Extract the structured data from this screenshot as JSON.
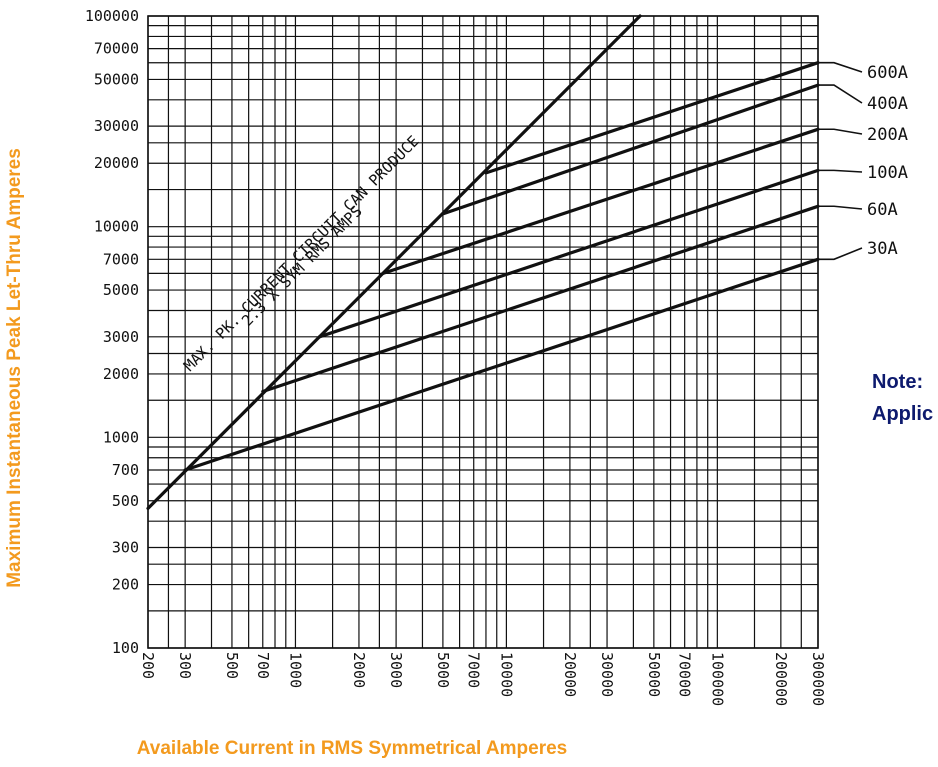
{
  "chart_data": {
    "type": "line",
    "xlabel": "Available Current in RMS Symmetrical Amperes",
    "ylabel": "Maximum Instantaneous Peak Let-Thru Amperes",
    "xscale": "log",
    "yscale": "log",
    "xlim": [
      200,
      300000
    ],
    "ylim": [
      100,
      100000
    ],
    "x_ticks": [
      "200",
      "300",
      "500",
      "700",
      "1000",
      "2000",
      "3000",
      "5000",
      "7000",
      "10000",
      "20000",
      "30000",
      "50000",
      "70000",
      "100000",
      "200000",
      "300000"
    ],
    "y_ticks": [
      "100",
      "200",
      "300",
      "500",
      "700",
      "1000",
      "2000",
      "3000",
      "5000",
      "7000",
      "10000",
      "20000",
      "30000",
      "50000",
      "70000",
      "100000"
    ],
    "max_line": {
      "label_line1": "MAX. PK. CURRENT CIRCUIT CAN PRODUCE",
      "label_line2": "2.3 X SYM RMS AMPS",
      "x": [
        200,
        43000
      ],
      "y": [
        460,
        100000
      ]
    },
    "series": [
      {
        "name": "600A",
        "x": [
          8000,
          300000
        ],
        "y": [
          18000,
          60000
        ]
      },
      {
        "name": "400A",
        "x": [
          5000,
          300000
        ],
        "y": [
          11500,
          47000
        ]
      },
      {
        "name": "200A",
        "x": [
          2600,
          300000
        ],
        "y": [
          6000,
          29000
        ]
      },
      {
        "name": "100A",
        "x": [
          1300,
          300000
        ],
        "y": [
          3000,
          18500
        ]
      },
      {
        "name": "60A",
        "x": [
          700,
          300000
        ],
        "y": [
          1650,
          12500
        ]
      },
      {
        "name": "30A",
        "x": [
          300,
          300000
        ],
        "y": [
          700,
          7000
        ]
      }
    ],
    "note_lines": [
      "Note:",
      "Applic"
    ],
    "colors": {
      "axis_title": "#f39a1e",
      "note": "#0d1a6e",
      "ink": "#111111"
    }
  }
}
